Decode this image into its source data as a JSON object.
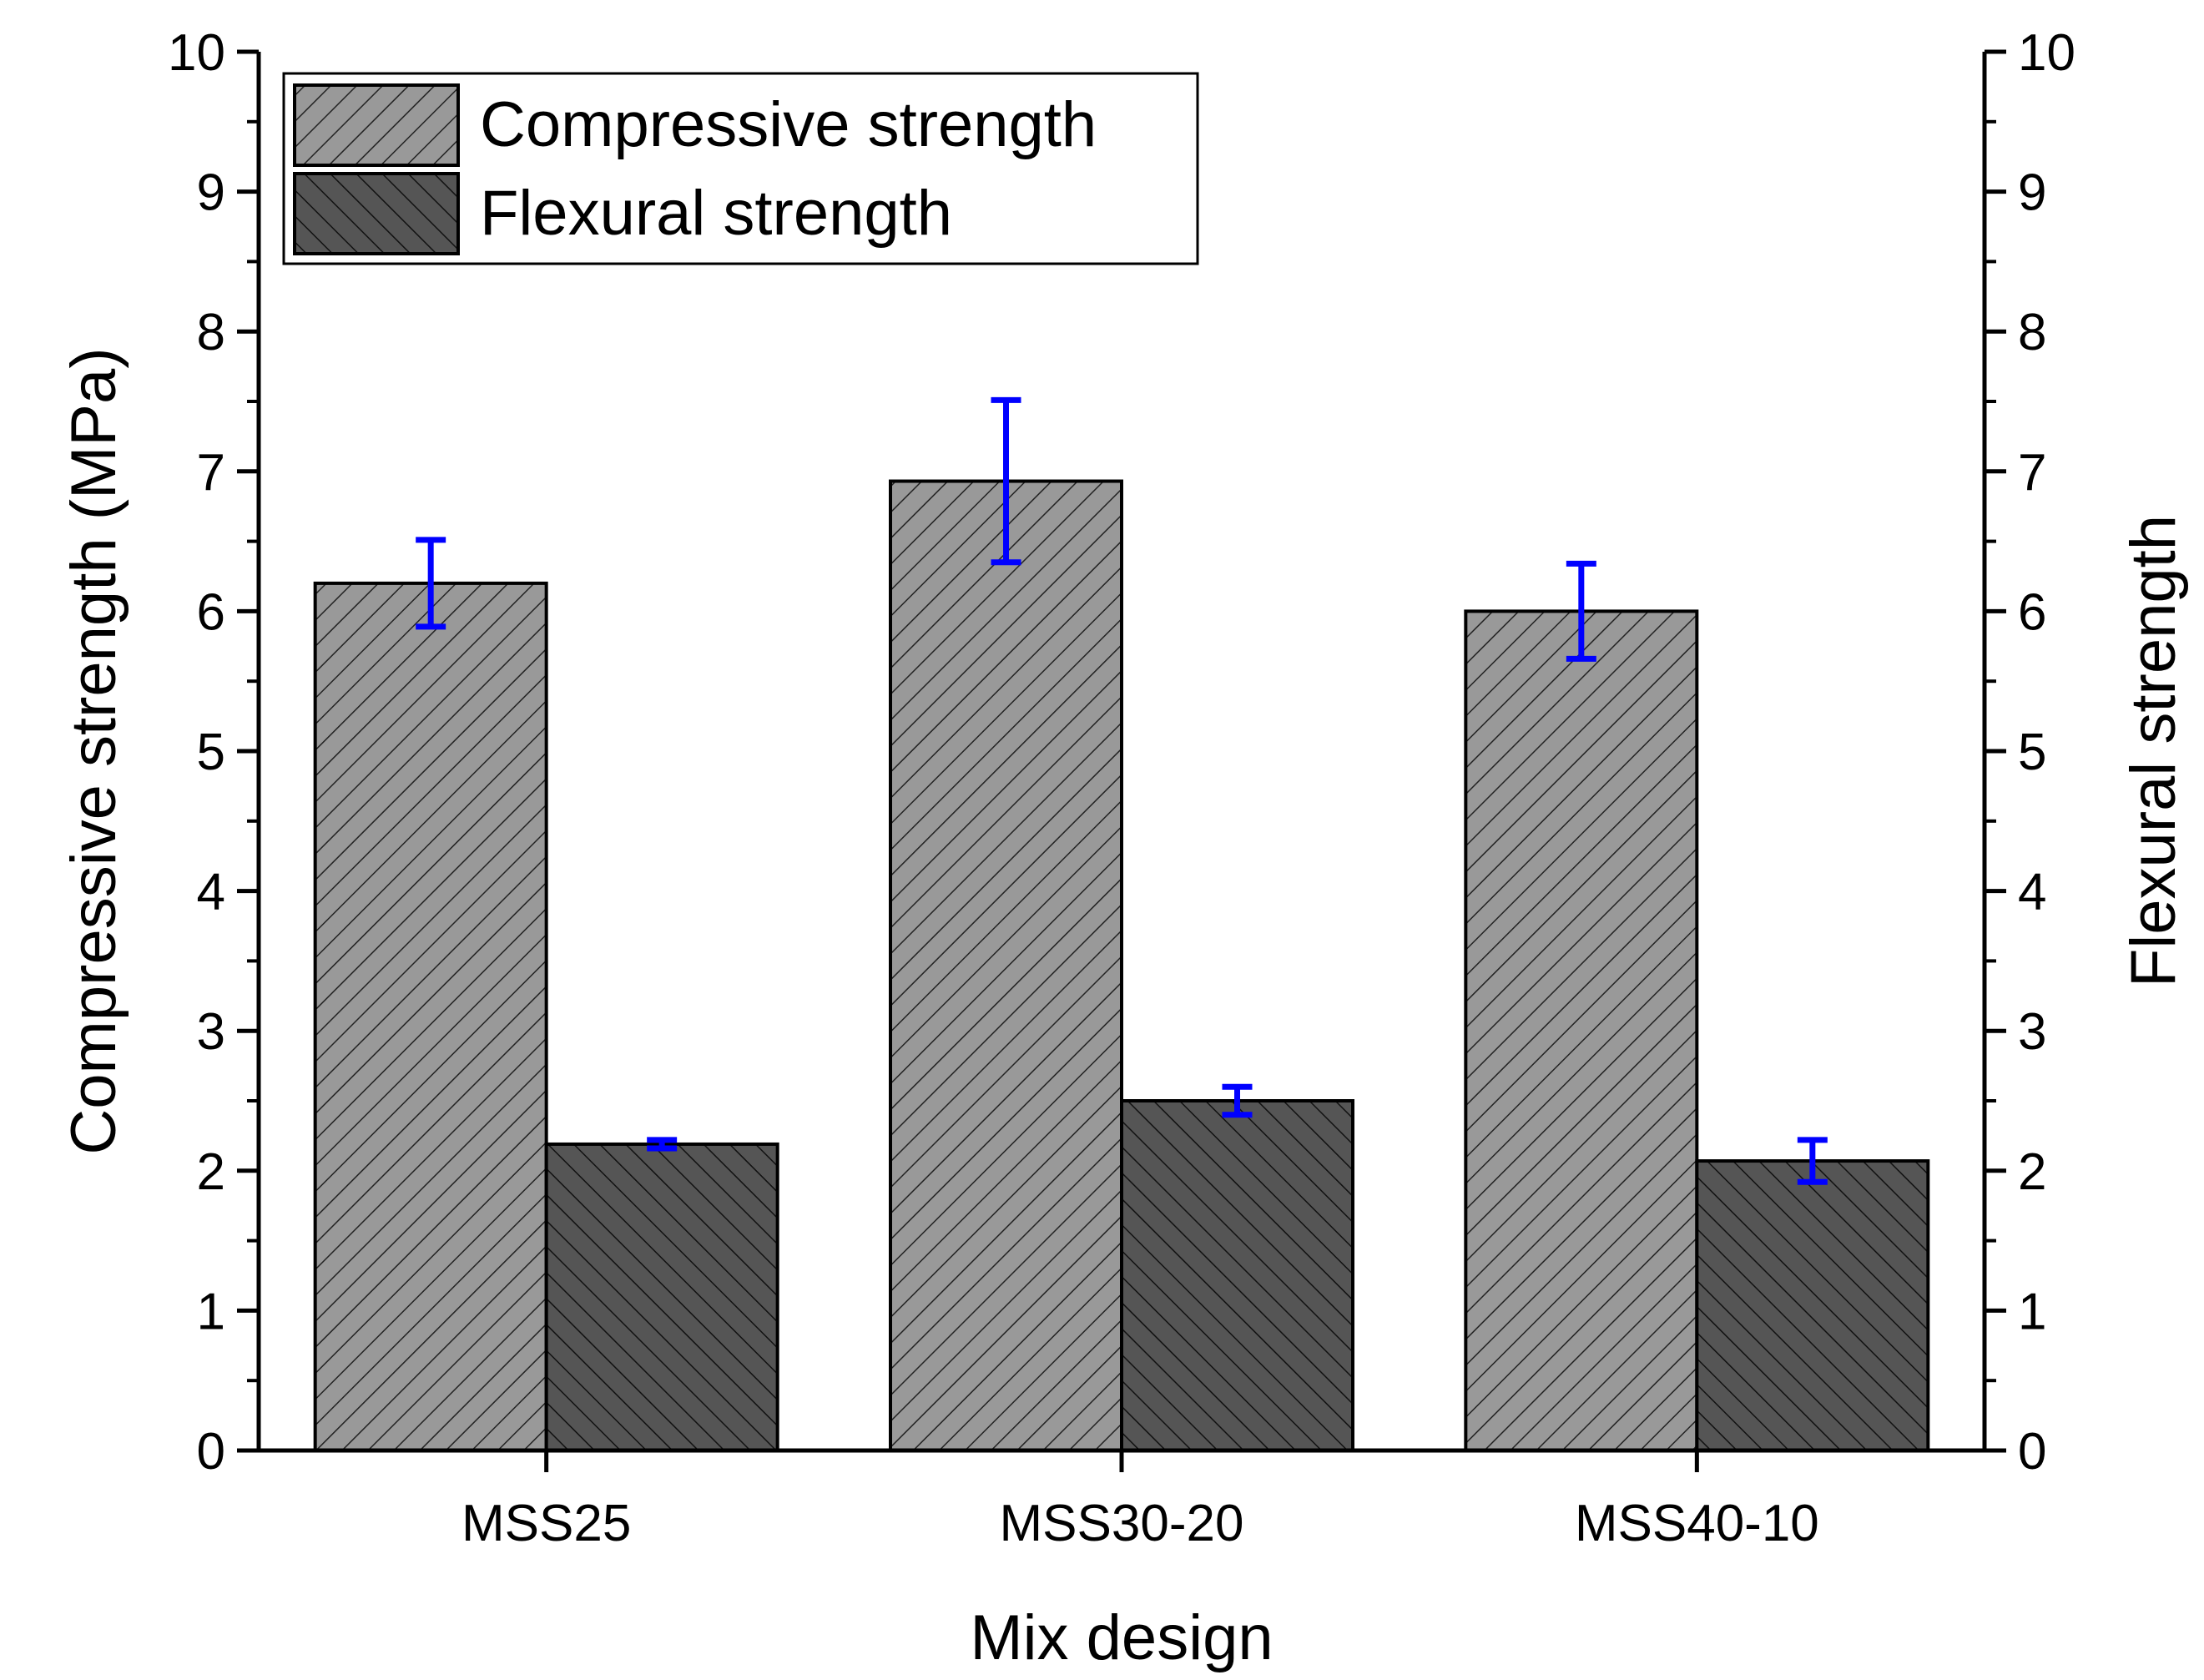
{
  "chart_data": {
    "type": "bar",
    "title": "",
    "xlabel": "Mix design",
    "ylabel": "Compressive strength (MPa)",
    "ylabel_right": "Flexural strength",
    "categories": [
      "MSS25",
      "MSS30-20",
      "MSS40-10"
    ],
    "ylim": [
      0,
      10
    ],
    "ylim_right": [
      0,
      10
    ],
    "yticks": [
      "0",
      "1",
      "2",
      "3",
      "4",
      "5",
      "6",
      "7",
      "8",
      "9",
      "10"
    ],
    "series": [
      {
        "name": "Compressive strength",
        "axis": "left",
        "values": [
          6.2,
          6.93,
          6.0
        ],
        "error": [
          0.31,
          0.58,
          0.34
        ],
        "fill": "#999999",
        "hatch": "forward-diagonal"
      },
      {
        "name": "Flexural strength",
        "axis": "right",
        "values": [
          2.19,
          2.5,
          2.07
        ],
        "error": [
          0.03,
          0.1,
          0.15
        ],
        "fill": "#555555",
        "hatch": "back-diagonal"
      }
    ],
    "error_bar_color": "#0000ff",
    "legend": {
      "position": "top-left"
    }
  }
}
